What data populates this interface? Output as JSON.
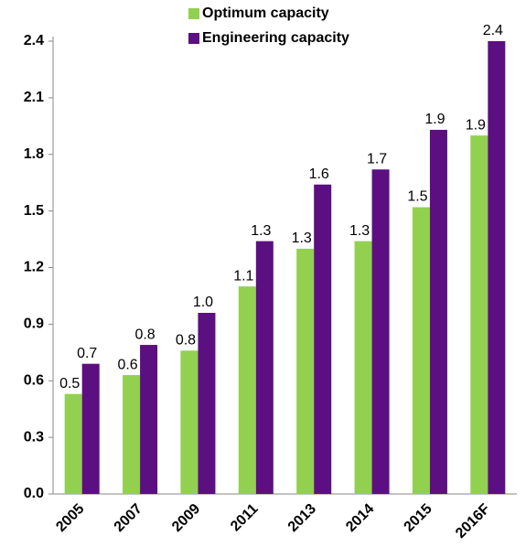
{
  "chart_data": {
    "type": "bar",
    "categories": [
      "2005",
      "2007",
      "2009",
      "2011",
      "2013",
      "2014",
      "2015",
      "2016F"
    ],
    "series": [
      {
        "name": "Optimum capacity",
        "color": "#92d050",
        "values": [
          0.53,
          0.63,
          0.76,
          1.1,
          1.3,
          1.34,
          1.52,
          1.9
        ],
        "value_labels": [
          "0.5",
          "0.6",
          "0.8",
          "1.1",
          "1.3",
          "1.3",
          "1.5",
          "1.9"
        ]
      },
      {
        "name": "Engineering capacity",
        "color": "#5c0f80",
        "values": [
          0.69,
          0.79,
          0.96,
          1.34,
          1.64,
          1.72,
          1.93,
          2.4
        ],
        "value_labels": [
          "0.7",
          "0.8",
          "1.0",
          "1.3",
          "1.6",
          "1.7",
          "1.9",
          "2.4"
        ]
      }
    ],
    "ylim": [
      0,
      2.4
    ],
    "yticks": [
      {
        "value": 0,
        "label": "0.0"
      },
      0.3,
      0.6,
      0.9,
      1.2,
      1.5,
      1.8,
      2.1,
      2.4
    ],
    "grid": false
  }
}
